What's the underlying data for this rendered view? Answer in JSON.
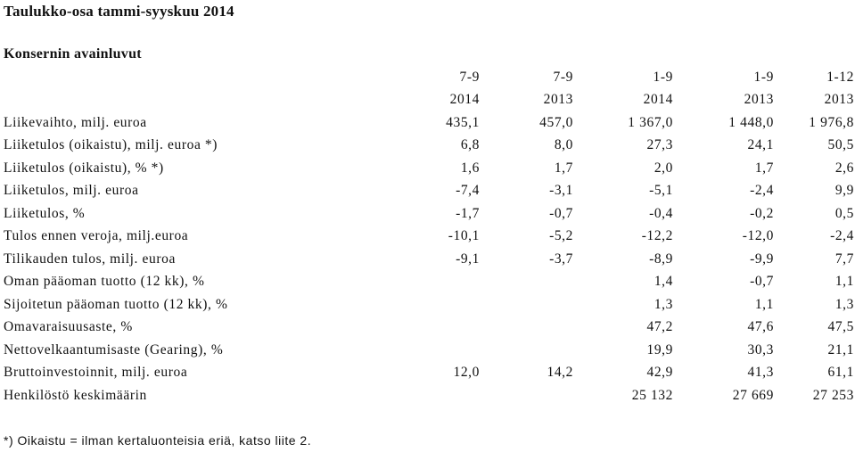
{
  "title": "Taulukko-osa tammi-syyskuu 2014",
  "subtitle": "Konsernin avainluvut",
  "header": {
    "row1": [
      "7-9",
      "7-9",
      "1-9",
      "1-9",
      "1-12"
    ],
    "row2": [
      "2014",
      "2013",
      "2014",
      "2013",
      "2013"
    ]
  },
  "rows": [
    {
      "label": "Liikevaihto, milj. euroa",
      "values": [
        "435,1",
        "457,0",
        "1 367,0",
        "1 448,0",
        "1 976,8"
      ]
    },
    {
      "label": "Liiketulos (oikaistu), milj. euroa *)",
      "values": [
        "6,8",
        "8,0",
        "27,3",
        "24,1",
        "50,5"
      ]
    },
    {
      "label": "Liiketulos (oikaistu), % *)",
      "values": [
        "1,6",
        "1,7",
        "2,0",
        "1,7",
        "2,6"
      ]
    },
    {
      "label": "Liiketulos, milj. euroa",
      "values": [
        "-7,4",
        "-3,1",
        "-5,1",
        "-2,4",
        "9,9"
      ]
    },
    {
      "label": "Liiketulos, %",
      "values": [
        "-1,7",
        "-0,7",
        "-0,4",
        "-0,2",
        "0,5"
      ]
    },
    {
      "label": "Tulos ennen veroja, milj.euroa",
      "values": [
        "-10,1",
        "-5,2",
        "-12,2",
        "-12,0",
        "-2,4"
      ]
    },
    {
      "label": "Tilikauden tulos, milj. euroa",
      "values": [
        "-9,1",
        "-3,7",
        "-8,9",
        "-9,9",
        "7,7"
      ]
    },
    {
      "label": "Oman pääoman tuotto (12 kk), %",
      "values": [
        "",
        "",
        "1,4",
        "-0,7",
        "1,1"
      ]
    },
    {
      "label": "Sijoitetun pääoman tuotto (12 kk), %",
      "values": [
        "",
        "",
        "1,3",
        "1,1",
        "1,3"
      ]
    },
    {
      "label": "Omavaraisuusaste, %",
      "values": [
        "",
        "",
        "47,2",
        "47,6",
        "47,5"
      ]
    },
    {
      "label": "Nettovelkaantumisaste (Gearing), %",
      "values": [
        "",
        "",
        "19,9",
        "30,3",
        "21,1"
      ]
    },
    {
      "label": "Bruttoinvestoinnit, milj. euroa",
      "values": [
        "12,0",
        "14,2",
        "42,9",
        "41,3",
        "61,1"
      ]
    },
    {
      "label": "Henkilöstö keskimäärin",
      "values": [
        "",
        "",
        "25 132",
        "27 669",
        "27 253"
      ]
    }
  ],
  "footnote": "*) Oikaistu = ilman kertaluonteisia eriä, katso liite 2."
}
